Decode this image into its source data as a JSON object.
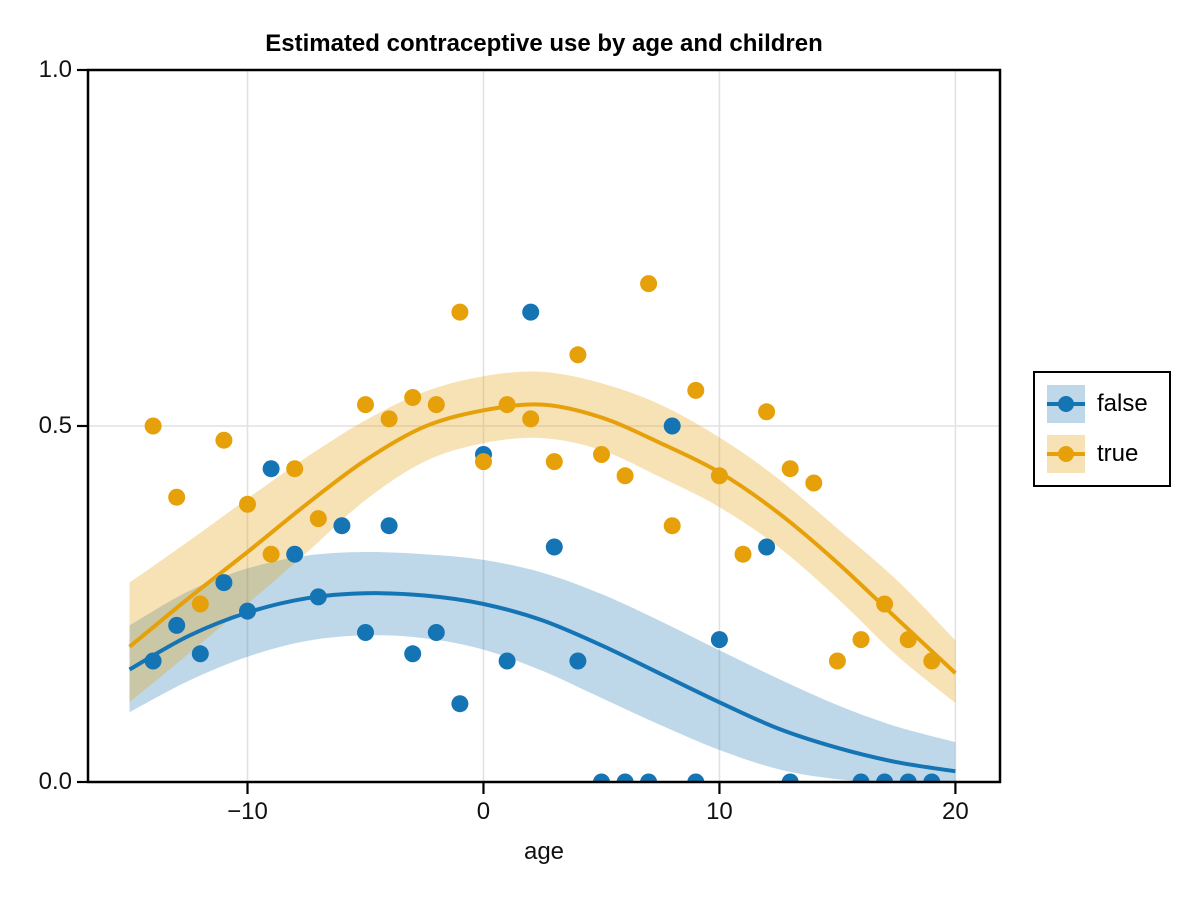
{
  "chart_data": {
    "type": "scatter",
    "title": "Estimated contraceptive use by age and children",
    "xlabel": "age",
    "ylabel": "",
    "xlim": [
      -16.76,
      21.89
    ],
    "ylim": [
      0,
      1.0
    ],
    "grid": {
      "x_values": [
        -10,
        0,
        10,
        20
      ],
      "y_values": [
        0.5,
        1.0
      ],
      "color": "#e2e2e2"
    },
    "xticks": [
      {
        "value": -10,
        "label": "−10"
      },
      {
        "value": 0,
        "label": "0"
      },
      {
        "value": 10,
        "label": "10"
      },
      {
        "value": 20,
        "label": "20"
      }
    ],
    "yticks": [
      {
        "value": 0.0,
        "label": "0.0"
      },
      {
        "value": 0.5,
        "label": "0.5"
      },
      {
        "value": 1.0,
        "label": "1.0"
      }
    ],
    "fit_x": [
      -15,
      -12.5,
      -10,
      -7.5,
      -5,
      -2.5,
      0,
      2.5,
      5,
      7.5,
      10,
      12.5,
      15,
      17.5,
      20
    ],
    "series": [
      {
        "name": "false",
        "color": "#1474B4",
        "band_color": "rgba(20,116,180,0.28)",
        "points": {
          "x": [
            -14,
            -13,
            -12,
            -11,
            -10,
            -9,
            -8,
            -7,
            -6,
            -5,
            -4,
            -3,
            -2,
            -1,
            0,
            1,
            2,
            3,
            4,
            5,
            6,
            7,
            8,
            9,
            10,
            12,
            13,
            16,
            17,
            18,
            19
          ],
          "y": [
            0.17,
            0.22,
            0.18,
            0.28,
            0.24,
            0.44,
            0.32,
            0.26,
            0.36,
            0.21,
            0.36,
            0.18,
            0.21,
            0.11,
            0.46,
            0.17,
            0.66,
            0.33,
            0.17,
            0.0,
            0.0,
            0.0,
            0.5,
            0.0,
            0.2,
            0.33,
            0.0,
            0.0,
            0.0,
            0.0,
            0.0
          ]
        },
        "fit": {
          "mean": [
            0.158,
            0.205,
            0.238,
            0.258,
            0.265,
            0.262,
            0.25,
            0.227,
            0.192,
            0.152,
            0.112,
            0.075,
            0.048,
            0.028,
            0.015
          ],
          "upper": [
            0.22,
            0.268,
            0.3,
            0.318,
            0.323,
            0.32,
            0.312,
            0.294,
            0.264,
            0.226,
            0.185,
            0.145,
            0.108,
            0.078,
            0.056
          ],
          "lower": [
            0.098,
            0.142,
            0.176,
            0.198,
            0.206,
            0.202,
            0.186,
            0.156,
            0.118,
            0.08,
            0.045,
            0.018,
            0.004,
            0.0,
            0.0
          ]
        }
      },
      {
        "name": "true",
        "color": "#E6A00A",
        "band_color": "rgba(230,160,10,0.30)",
        "points": {
          "x": [
            -14,
            -13,
            -12,
            -11,
            -10,
            -9,
            -8,
            -7,
            -5,
            -4,
            -3,
            -2,
            -1,
            0,
            1,
            2,
            3,
            4,
            5,
            6,
            7,
            8,
            9,
            10,
            11,
            12,
            13,
            14,
            15,
            16,
            17,
            18,
            19
          ],
          "y": [
            0.5,
            0.4,
            0.25,
            0.48,
            0.39,
            0.32,
            0.44,
            0.37,
            0.53,
            0.51,
            0.54,
            0.53,
            0.66,
            0.45,
            0.53,
            0.51,
            0.45,
            0.6,
            0.46,
            0.43,
            0.7,
            0.36,
            0.55,
            0.43,
            0.32,
            0.52,
            0.44,
            0.42,
            0.17,
            0.2,
            0.25,
            0.2,
            0.17
          ]
        },
        "fit": {
          "mean": [
            0.19,
            0.258,
            0.323,
            0.39,
            0.452,
            0.499,
            0.522,
            0.53,
            0.512,
            0.476,
            0.435,
            0.378,
            0.308,
            0.23,
            0.153
          ],
          "upper": [
            0.28,
            0.338,
            0.398,
            0.456,
            0.508,
            0.548,
            0.57,
            0.576,
            0.56,
            0.53,
            0.484,
            0.426,
            0.356,
            0.284,
            0.199
          ],
          "lower": [
            0.112,
            0.18,
            0.25,
            0.322,
            0.396,
            0.45,
            0.476,
            0.483,
            0.466,
            0.428,
            0.386,
            0.33,
            0.258,
            0.178,
            0.111
          ]
        }
      }
    ],
    "legend_position": "right-outside",
    "frame_color": "#000000",
    "marker_radius": 8.5
  }
}
